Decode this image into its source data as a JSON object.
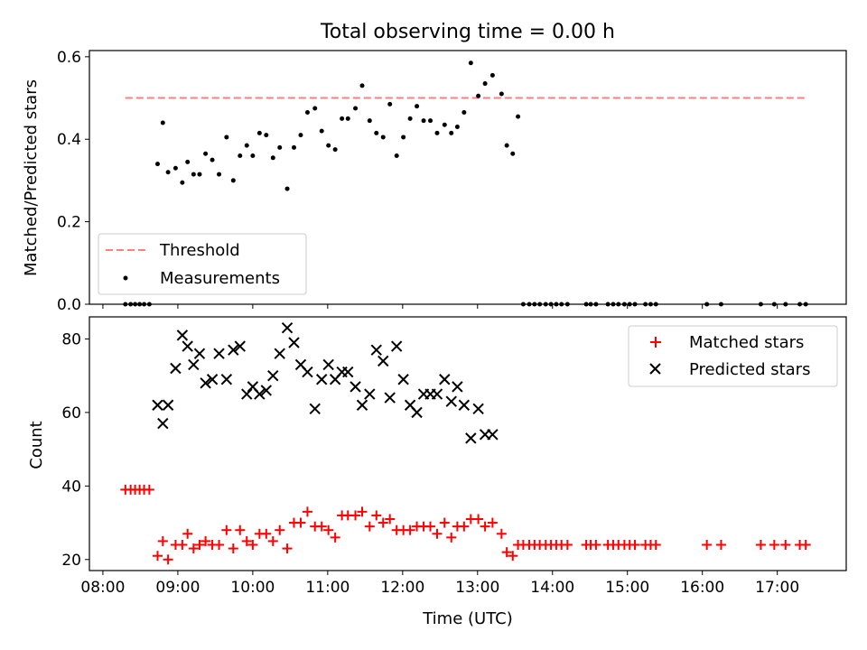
{
  "chart_data": [
    {
      "type": "scatter",
      "title": "Total observing time = 0.00 h",
      "ylabel": "Matched/Predicted stars",
      "xlabel": "",
      "x_unit": "hours UTC",
      "xlim": [
        7.82,
        17.92
      ],
      "ylim": [
        0,
        0.615
      ],
      "yticks": [
        0.0,
        0.2,
        0.4,
        0.6
      ],
      "ytick_labels": [
        "0.0",
        "0.2",
        "0.4",
        "0.6"
      ],
      "xticks": [
        8,
        9,
        10,
        11,
        12,
        13,
        14,
        15,
        16,
        17
      ],
      "legend": {
        "placement": "lower-left"
      },
      "colors": {
        "threshold": "#ff7f7f",
        "measurements": "#000000"
      },
      "series": [
        {
          "name": "Threshold",
          "style": "dashed-line",
          "x": [
            8.3,
            17.4
          ],
          "y": [
            0.5,
            0.5
          ]
        },
        {
          "name": "Measurements",
          "style": "points",
          "x": [
            8.3,
            8.37,
            8.43,
            8.49,
            8.55,
            8.62,
            8.73,
            8.8,
            8.87,
            8.97,
            9.06,
            9.13,
            9.21,
            9.29,
            9.37,
            9.46,
            9.55,
            9.65,
            9.74,
            9.83,
            9.92,
            10.0,
            10.09,
            10.18,
            10.27,
            10.36,
            10.46,
            10.55,
            10.64,
            10.73,
            10.83,
            10.92,
            11.01,
            11.1,
            11.19,
            11.27,
            11.37,
            11.46,
            11.56,
            11.65,
            11.74,
            11.83,
            11.92,
            12.01,
            12.1,
            12.19,
            12.28,
            12.37,
            12.46,
            12.56,
            12.65,
            12.73,
            12.82,
            12.91,
            13.01,
            13.1,
            13.2,
            13.32,
            13.39,
            13.47,
            13.54,
            13.61,
            13.69,
            13.76,
            13.83,
            13.91,
            13.98,
            14.05,
            14.12,
            14.2,
            14.45,
            14.51,
            14.58,
            14.74,
            14.81,
            14.88,
            14.96,
            15.03,
            15.1,
            15.24,
            15.31,
            15.38,
            16.06,
            16.25,
            16.78,
            16.96,
            17.11,
            17.3,
            17.38
          ],
          "y": [
            0,
            0,
            0,
            0,
            0,
            0,
            0.34,
            0.44,
            0.32,
            0.33,
            0.295,
            0.345,
            0.315,
            0.315,
            0.365,
            0.35,
            0.315,
            0.405,
            0.3,
            0.36,
            0.385,
            0.36,
            0.415,
            0.41,
            0.355,
            0.38,
            0.28,
            0.38,
            0.41,
            0.465,
            0.475,
            0.42,
            0.385,
            0.375,
            0.45,
            0.45,
            0.475,
            0.53,
            0.445,
            0.415,
            0.405,
            0.485,
            0.36,
            0.405,
            0.45,
            0.48,
            0.445,
            0.445,
            0.415,
            0.435,
            0.415,
            0.43,
            0.465,
            0.585,
            0.505,
            0.535,
            0.555,
            0.51,
            0.385,
            0.365,
            0.455,
            0,
            0,
            0,
            0,
            0,
            0,
            0,
            0,
            0,
            0,
            0,
            0,
            0,
            0,
            0,
            0,
            0,
            0,
            0,
            0,
            0,
            0,
            0,
            0,
            0,
            0,
            0,
            0
          ]
        }
      ]
    },
    {
      "type": "scatter",
      "title": "",
      "ylabel": "Count",
      "xlabel": "Time (UTC)",
      "x_unit": "hours UTC",
      "xlim": [
        7.82,
        17.92
      ],
      "ylim": [
        17,
        86
      ],
      "yticks": [
        20,
        40,
        60,
        80
      ],
      "ytick_labels": [
        "20",
        "40",
        "60",
        "80"
      ],
      "xticks": [
        8,
        9,
        10,
        11,
        12,
        13,
        14,
        15,
        16,
        17
      ],
      "xtick_labels": [
        "08:00",
        "09:00",
        "10:00",
        "11:00",
        "12:00",
        "13:00",
        "14:00",
        "15:00",
        "16:00",
        "17:00"
      ],
      "legend": {
        "placement": "upper-right"
      },
      "colors": {
        "matched": "#ff0000",
        "predicted": "#000000"
      },
      "series": [
        {
          "name": "Matched stars",
          "marker": "plus",
          "x": [
            8.3,
            8.37,
            8.43,
            8.49,
            8.55,
            8.62,
            8.73,
            8.8,
            8.87,
            8.97,
            9.06,
            9.13,
            9.21,
            9.29,
            9.37,
            9.46,
            9.55,
            9.65,
            9.74,
            9.83,
            9.92,
            10.0,
            10.09,
            10.18,
            10.27,
            10.36,
            10.46,
            10.55,
            10.64,
            10.73,
            10.83,
            10.92,
            11.01,
            11.1,
            11.19,
            11.27,
            11.37,
            11.46,
            11.56,
            11.65,
            11.74,
            11.83,
            11.92,
            12.01,
            12.1,
            12.19,
            12.28,
            12.37,
            12.46,
            12.56,
            12.65,
            12.73,
            12.82,
            12.91,
            13.01,
            13.1,
            13.2,
            13.32,
            13.39,
            13.47,
            13.54,
            13.61,
            13.69,
            13.76,
            13.83,
            13.91,
            13.98,
            14.05,
            14.12,
            14.2,
            14.45,
            14.51,
            14.58,
            14.74,
            14.81,
            14.88,
            14.96,
            15.03,
            15.1,
            15.24,
            15.31,
            15.38,
            16.06,
            16.25,
            16.78,
            16.96,
            17.11,
            17.3,
            17.38
          ],
          "y": [
            39,
            39,
            39,
            39,
            39,
            39,
            21,
            25,
            20,
            24,
            24,
            27,
            23,
            24,
            25,
            24,
            24,
            28,
            23,
            28,
            25,
            24,
            27,
            27,
            25,
            28,
            23,
            30,
            30,
            33,
            29,
            29,
            28,
            26,
            32,
            32,
            32,
            33,
            29,
            32,
            30,
            31,
            28,
            28,
            28,
            29,
            29,
            29,
            27,
            30,
            26,
            29,
            29,
            31,
            31,
            29,
            30,
            27,
            22,
            21,
            24,
            24,
            24,
            24,
            24,
            24,
            24,
            24,
            24,
            24,
            24,
            24,
            24,
            24,
            24,
            24,
            24,
            24,
            24,
            24,
            24,
            24,
            24,
            24,
            24,
            24,
            24,
            24,
            24
          ]
        },
        {
          "name": "Predicted stars",
          "marker": "x",
          "x": [
            8.73,
            8.8,
            8.87,
            8.97,
            9.06,
            9.13,
            9.21,
            9.29,
            9.37,
            9.46,
            9.55,
            9.65,
            9.74,
            9.83,
            9.92,
            10.0,
            10.09,
            10.18,
            10.27,
            10.36,
            10.46,
            10.55,
            10.64,
            10.73,
            10.83,
            10.92,
            11.01,
            11.1,
            11.19,
            11.27,
            11.37,
            11.46,
            11.56,
            11.65,
            11.74,
            11.83,
            11.92,
            12.01,
            12.1,
            12.19,
            12.28,
            12.37,
            12.46,
            12.56,
            12.65,
            12.73,
            12.82,
            12.91,
            13.01,
            13.1,
            13.2
          ],
          "y": [
            62,
            57,
            62,
            72,
            81,
            78,
            73,
            76,
            68,
            69,
            76,
            69,
            77,
            78,
            65,
            67,
            65,
            66,
            70,
            76,
            83,
            79,
            73,
            71,
            61,
            69,
            73,
            69,
            71,
            71,
            67,
            62,
            65,
            77,
            74,
            64,
            78,
            69,
            62,
            60,
            65,
            65,
            65,
            69,
            63,
            67,
            62,
            53,
            61,
            54,
            54
          ]
        }
      ]
    }
  ]
}
